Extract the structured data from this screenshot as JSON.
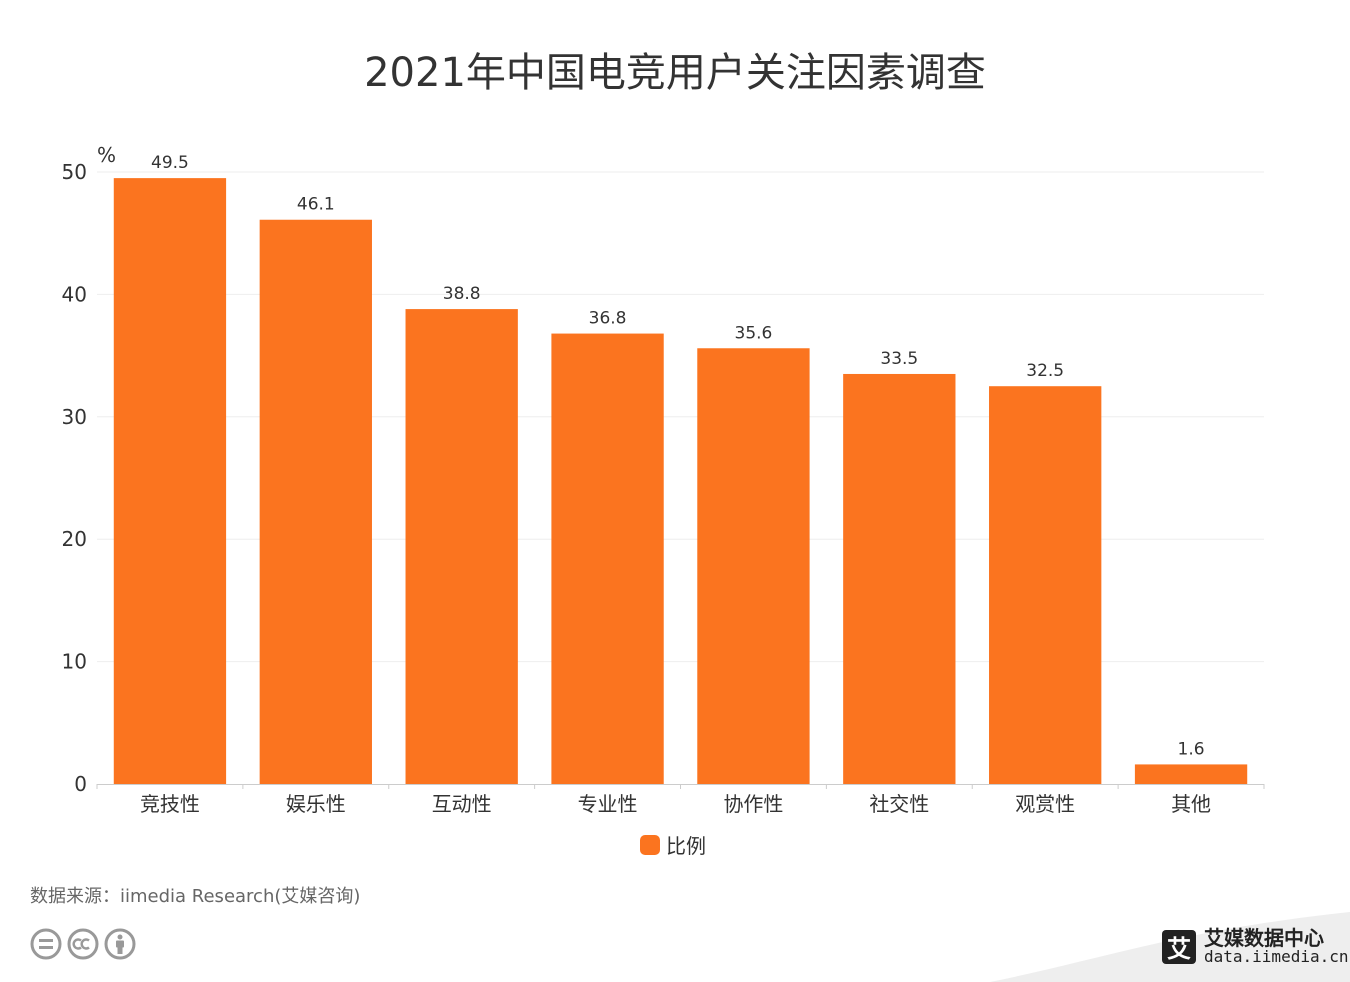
{
  "title": "2021年中国电竞用户关注因素调查",
  "chart_data": {
    "type": "bar",
    "title": "2021年中国电竞用户关注因素调查",
    "unit_label": "%",
    "categories": [
      "竞技性",
      "娱乐性",
      "互动性",
      "专业性",
      "协作性",
      "社交性",
      "观赏性",
      "其他"
    ],
    "series": [
      {
        "name": "比例",
        "values": [
          49.5,
          46.1,
          38.8,
          36.8,
          35.6,
          33.5,
          32.5,
          1.6
        ],
        "color": "#fb741f"
      }
    ],
    "ylim": [
      0,
      50
    ],
    "yticks": [
      0,
      10,
      20,
      30,
      40,
      50
    ],
    "grid": true,
    "legend_position": "bottom-center",
    "data_labels": true
  },
  "legend": {
    "label": "比例",
    "color": "#fb741f"
  },
  "source": "数据来源：iimedia Research(艾媒咨询)",
  "brand": {
    "logo_char": "艾",
    "name": "艾媒数据中心",
    "url": "data.iimedia.cn"
  },
  "icons": [
    "equal-icon",
    "cc-icon",
    "person-icon"
  ]
}
